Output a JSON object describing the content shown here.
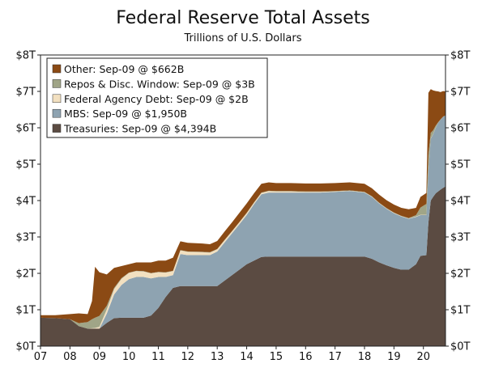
{
  "chart_data": {
    "type": "area",
    "title": "Federal Reserve Total Assets",
    "subtitle": "Trillions of U.S. Dollars",
    "stacked": true,
    "xlabel": "",
    "ylabel": "",
    "x_ticks": [
      "07",
      "08",
      "09",
      "10",
      "11",
      "12",
      "13",
      "14",
      "15",
      "16",
      "17",
      "18",
      "19",
      "20"
    ],
    "y_ticks": [
      "$0T",
      "$1T",
      "$2T",
      "$3T",
      "$4T",
      "$5T",
      "$6T",
      "$7T",
      "$8T"
    ],
    "ylim": [
      0,
      8
    ],
    "xlim": [
      2007.0,
      2020.75
    ],
    "legend_position": "top-left",
    "x": [
      2007.0,
      2007.5,
      2008.0,
      2008.3,
      2008.6,
      2008.75,
      2008.85,
      2009.0,
      2009.25,
      2009.5,
      2009.75,
      2010.0,
      2010.25,
      2010.5,
      2010.75,
      2011.0,
      2011.25,
      2011.5,
      2011.75,
      2012.0,
      2012.5,
      2012.75,
      2013.0,
      2013.25,
      2013.5,
      2013.75,
      2014.0,
      2014.25,
      2014.5,
      2014.75,
      2015.0,
      2015.5,
      2016.0,
      2016.5,
      2017.0,
      2017.5,
      2018.0,
      2018.25,
      2018.5,
      2018.75,
      2019.0,
      2019.25,
      2019.5,
      2019.75,
      2019.9,
      2020.1,
      2020.17,
      2020.25,
      2020.33,
      2020.42,
      2020.5,
      2020.58,
      2020.67,
      2020.75
    ],
    "series": [
      {
        "name": "Treasuries",
        "legend": "Treasuries: Sep-09 @ $4,394B",
        "color": "#5b4b42",
        "values": [
          0.78,
          0.77,
          0.74,
          0.55,
          0.48,
          0.48,
          0.48,
          0.48,
          0.64,
          0.77,
          0.78,
          0.78,
          0.78,
          0.78,
          0.84,
          1.05,
          1.35,
          1.6,
          1.65,
          1.65,
          1.65,
          1.65,
          1.65,
          1.8,
          1.95,
          2.1,
          2.25,
          2.35,
          2.45,
          2.46,
          2.46,
          2.46,
          2.46,
          2.46,
          2.46,
          2.46,
          2.46,
          2.4,
          2.3,
          2.22,
          2.15,
          2.1,
          2.1,
          2.25,
          2.48,
          2.5,
          3.4,
          4.0,
          4.1,
          4.2,
          4.25,
          4.3,
          4.35,
          4.39
        ]
      },
      {
        "name": "MBS",
        "legend": "MBS: Sep-09 @ $1,950B",
        "color": "#8ea3b1",
        "values": [
          0,
          0,
          0,
          0,
          0,
          0,
          0,
          0,
          0.25,
          0.65,
          0.9,
          1.06,
          1.12,
          1.12,
          1.02,
          0.85,
          0.55,
          0.35,
          0.88,
          0.85,
          0.85,
          0.85,
          0.95,
          1.05,
          1.15,
          1.25,
          1.35,
          1.55,
          1.72,
          1.76,
          1.76,
          1.76,
          1.76,
          1.76,
          1.78,
          1.8,
          1.76,
          1.7,
          1.62,
          1.55,
          1.5,
          1.46,
          1.4,
          1.3,
          1.12,
          1.1,
          1.4,
          1.7,
          1.72,
          1.8,
          1.88,
          1.92,
          1.95,
          1.95
        ]
      },
      {
        "name": "Federal Agency Debt",
        "legend": "Federal Agency Debt: Sep-09 @ $2B",
        "color": "#f2e0c0",
        "values": [
          0,
          0,
          0,
          0,
          0,
          0.01,
          0.02,
          0.05,
          0.12,
          0.15,
          0.17,
          0.17,
          0.16,
          0.15,
          0.14,
          0.13,
          0.12,
          0.11,
          0.1,
          0.09,
          0.08,
          0.07,
          0.06,
          0.06,
          0.05,
          0.05,
          0.05,
          0.04,
          0.04,
          0.04,
          0.03,
          0.03,
          0.02,
          0.02,
          0.01,
          0.01,
          0.01,
          0.01,
          0.01,
          0.01,
          0.01,
          0.01,
          0.01,
          0.01,
          0.01,
          0.01,
          0.01,
          0.01,
          0.01,
          0.01,
          0.0,
          0.0,
          0.0,
          0.0
        ]
      },
      {
        "name": "Repos & Disc. Window",
        "legend": "Repos & Disc. Window: Sep-09 @ $3B",
        "color": "#a0a587",
        "values": [
          0,
          0,
          0,
          0.08,
          0.18,
          0.25,
          0.28,
          0.3,
          0.1,
          0.03,
          0.02,
          0.01,
          0.01,
          0.01,
          0.01,
          0.01,
          0.01,
          0.01,
          0.01,
          0.01,
          0.01,
          0.01,
          0.01,
          0.01,
          0.01,
          0.01,
          0.01,
          0.01,
          0.01,
          0.01,
          0.01,
          0.01,
          0.01,
          0.01,
          0.01,
          0.01,
          0.01,
          0.01,
          0.01,
          0.01,
          0.01,
          0.01,
          0.01,
          0.04,
          0.2,
          0.3,
          0.45,
          0.15,
          0.1,
          0.05,
          0.02,
          0.01,
          0.01,
          0.0
        ]
      },
      {
        "name": "Other",
        "legend": "Other: Sep-09 @ $662B",
        "color": "#8b4a14",
        "values": [
          0.07,
          0.08,
          0.14,
          0.27,
          0.22,
          0.5,
          1.4,
          1.2,
          0.86,
          0.55,
          0.33,
          0.23,
          0.23,
          0.24,
          0.29,
          0.31,
          0.32,
          0.36,
          0.24,
          0.24,
          0.23,
          0.22,
          0.22,
          0.23,
          0.24,
          0.25,
          0.26,
          0.25,
          0.24,
          0.23,
          0.22,
          0.22,
          0.22,
          0.22,
          0.22,
          0.22,
          0.22,
          0.22,
          0.22,
          0.22,
          0.22,
          0.22,
          0.24,
          0.2,
          0.29,
          0.3,
          1.7,
          1.2,
          1.1,
          0.95,
          0.85,
          0.75,
          0.7,
          0.66
        ]
      }
    ]
  }
}
